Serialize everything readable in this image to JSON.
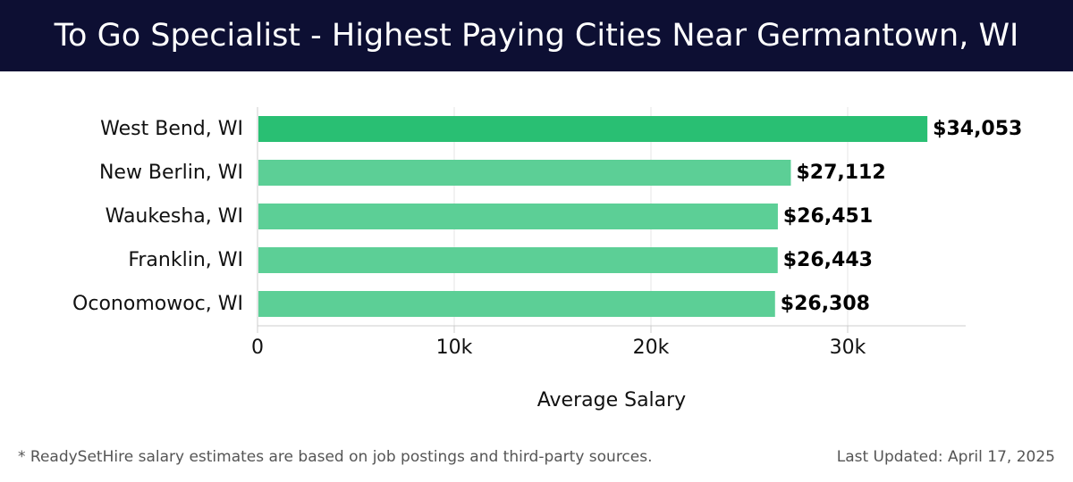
{
  "header": {
    "title": "To Go Specialist - Highest Paying Cities Near Germantown, WI"
  },
  "chart_data": {
    "type": "bar",
    "orientation": "horizontal",
    "categories": [
      "West Bend, WI",
      "New Berlin, WI",
      "Waukesha, WI",
      "Franklin, WI",
      "Oconomowoc, WI"
    ],
    "values": [
      34053,
      27112,
      26451,
      26443,
      26308
    ],
    "value_labels": [
      "$34,053",
      "$27,112",
      "$26,451",
      "$26,443",
      "$26,308"
    ],
    "xlabel": "Average Salary",
    "ylabel": "",
    "xlim": [
      0,
      36000
    ],
    "xticks": [
      0,
      10000,
      20000,
      30000
    ],
    "xtick_labels": [
      "0",
      "10k",
      "20k",
      "30k"
    ],
    "grid": true,
    "colors": {
      "highlight": "#29bf73",
      "bar": "#5ccf96",
      "grid": "#e6e6e6",
      "axis": "#cccccc"
    }
  },
  "footer": {
    "note": "* ReadySetHire salary estimates are based on job postings and third-party sources.",
    "updated": "Last Updated: April 17, 2025"
  }
}
